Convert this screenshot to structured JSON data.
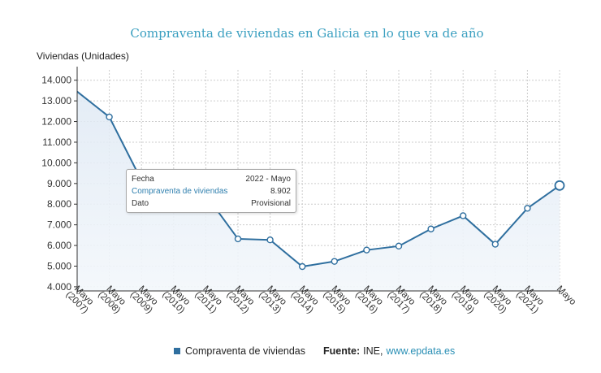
{
  "chart_data": {
    "type": "area",
    "title": "Compraventa de viviendas en Galicia en lo que va de año",
    "ylabel": "Viviendas (Unidades)",
    "xlabel": "",
    "ylim": [
      3800,
      14500
    ],
    "yticks": [
      4000,
      5000,
      6000,
      7000,
      8000,
      9000,
      10000,
      11000,
      12000,
      13000,
      14000
    ],
    "ytick_labels": [
      "4.000",
      "5.000",
      "6.000",
      "7.000",
      "8.000",
      "9.000",
      "10.000",
      "11.000",
      "12.000",
      "13.000",
      "14.000"
    ],
    "categories": [
      "Mayo (2007)",
      "Mayo (2008)",
      "Mayo (2009)",
      "Mayo (2010)",
      "Mayo (2011)",
      "Mayo (2012)",
      "Mayo (2013)",
      "Mayo (2014)",
      "Mayo (2015)",
      "Mayo (2016)",
      "Mayo (2017)",
      "Mayo (2018)",
      "Mayo (2019)",
      "Mayo (2020)",
      "Mayo (2021)",
      "Mayo"
    ],
    "series": [
      {
        "name": "Compraventa de viviendas",
        "values": [
          13450,
          12220,
          9150,
          8650,
          8450,
          6320,
          6270,
          4980,
          5230,
          5780,
          5970,
          6800,
          7440,
          6060,
          7800,
          8902
        ],
        "color": "#2f6f9f"
      }
    ],
    "grid": true,
    "legend_position": "bottom"
  },
  "tooltip": {
    "rows": [
      {
        "label": "Fecha",
        "value": "2022 - Mayo"
      },
      {
        "label": "Compraventa de viviendas",
        "value": "8.902"
      },
      {
        "label": "Dato",
        "value": "Provisional"
      }
    ]
  },
  "legend": {
    "series_label": "Compraventa de viviendas",
    "source_label": "Fuente:",
    "source_text": "INE,",
    "source_link": "www.epdata.es"
  }
}
